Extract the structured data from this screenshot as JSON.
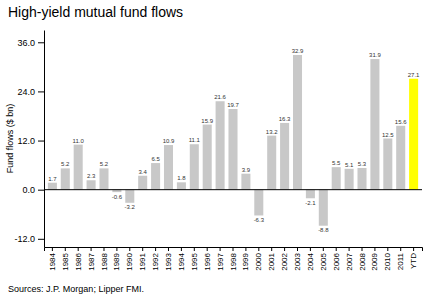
{
  "chart_data": {
    "type": "bar",
    "title": "High-yield mutual fund flows",
    "y_label": "Fund flows ($ bn)",
    "annotations": [
      "Sources: J.P. Morgan; Lipper FMI."
    ],
    "categories": [
      "1984",
      "1985",
      "1986",
      "1987",
      "1988",
      "1989",
      "1990",
      "1991",
      "1992",
      "1993",
      "1994",
      "1995",
      "1996",
      "1997",
      "1998",
      "1999",
      "2000",
      "2001",
      "2002",
      "2003",
      "2004",
      "2005",
      "2006",
      "2007",
      "2008",
      "2009",
      "2010",
      "2011",
      "YTD"
    ],
    "values": [
      1.7,
      5.2,
      11.0,
      2.3,
      5.2,
      -0.6,
      -3.2,
      3.4,
      6.5,
      10.9,
      1.8,
      11.1,
      15.9,
      21.6,
      19.7,
      3.9,
      -6.3,
      13.2,
      16.3,
      32.9,
      -2.1,
      -8.8,
      5.5,
      5.1,
      5.3,
      31.9,
      12.5,
      15.6,
      27.1
    ],
    "value_labels": [
      "1.7",
      "5.2",
      "11.0",
      "2.3",
      "5.2",
      "-0.6",
      "-3.2",
      "3.4",
      "6.5",
      "10.9",
      "1.8",
      "11.1",
      "15.9",
      "21.6",
      "19.7",
      "3.9",
      "-6.3",
      "13.2",
      "16.3",
      "32.9",
      "-2.1",
      "-8.8",
      "5.5",
      "5.1",
      "5.3",
      "31.9",
      "12.5",
      "15.6",
      "27.1"
    ],
    "colors": [
      "#c8c8c8",
      "#c8c8c8",
      "#c8c8c8",
      "#c8c8c8",
      "#c8c8c8",
      "#c8c8c8",
      "#c8c8c8",
      "#c8c8c8",
      "#c8c8c8",
      "#c8c8c8",
      "#c8c8c8",
      "#c8c8c8",
      "#c8c8c8",
      "#c8c8c8",
      "#c8c8c8",
      "#c8c8c8",
      "#c8c8c8",
      "#c8c8c8",
      "#c8c8c8",
      "#c8c8c8",
      "#c8c8c8",
      "#c8c8c8",
      "#c8c8c8",
      "#c8c8c8",
      "#c8c8c8",
      "#c8c8c8",
      "#c8c8c8",
      "#c8c8c8",
      "#ffff00"
    ],
    "data_labels": true,
    "grid": false,
    "ylim": [
      -14,
      39
    ],
    "yticks": [
      {
        "value": -12.0,
        "label": "-12.0"
      },
      {
        "value": 0.0,
        "label": "0.0"
      },
      {
        "value": 12.0,
        "label": "12.0"
      },
      {
        "value": 24.0,
        "label": "24.0"
      },
      {
        "value": 36.0,
        "label": "36.0"
      }
    ]
  }
}
